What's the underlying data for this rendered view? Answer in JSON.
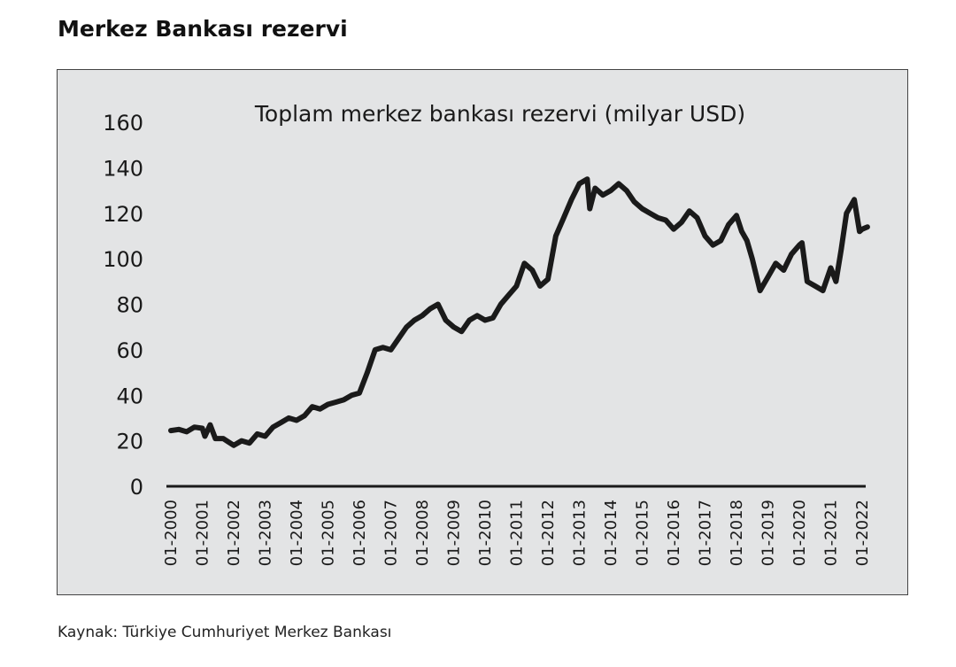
{
  "heading": "Merkez Bankası rezervi",
  "source": "Kaynak: Türkiye Cumhuriyet Merkez Bankası",
  "chart_data": {
    "type": "line",
    "title": "Toplam merkez bankası rezervi (milyar USD)",
    "xlabel": "",
    "ylabel": "",
    "ylim": [
      0,
      160
    ],
    "yticks": [
      0,
      20,
      40,
      60,
      80,
      100,
      120,
      140,
      160
    ],
    "xticks": [
      "01-2000",
      "01-2001",
      "01-2002",
      "01-2003",
      "01-2004",
      "01-2005",
      "01-2006",
      "01-2007",
      "01-2008",
      "01-2009",
      "01-2010",
      "01-2011",
      "01-2012",
      "01-2013",
      "01-2014",
      "01-2015",
      "01-2016",
      "01-2017",
      "01-2018",
      "01-2019",
      "01-2020",
      "01-2021",
      "01-2022"
    ],
    "grid": false,
    "line_color": "#1a1a1a",
    "series": [
      {
        "x": [
          "2000-01",
          "2000-04",
          "2000-07",
          "2000-10",
          "2001-01",
          "2001-02",
          "2001-04",
          "2001-06",
          "2001-09",
          "2002-01",
          "2002-04",
          "2002-07",
          "2002-10",
          "2003-01",
          "2003-04",
          "2003-07",
          "2003-10",
          "2004-01",
          "2004-04",
          "2004-07",
          "2004-10",
          "2005-01",
          "2005-04",
          "2005-07",
          "2005-10",
          "2006-01",
          "2006-04",
          "2006-07",
          "2006-10",
          "2007-01",
          "2007-04",
          "2007-07",
          "2007-10",
          "2008-01",
          "2008-04",
          "2008-07",
          "2008-10",
          "2009-01",
          "2009-04",
          "2009-07",
          "2009-10",
          "2010-01",
          "2010-04",
          "2010-07",
          "2010-10",
          "2011-01",
          "2011-04",
          "2011-07",
          "2011-10",
          "2012-01",
          "2012-04",
          "2012-07",
          "2012-10",
          "2013-01",
          "2013-04",
          "2013-05",
          "2013-07",
          "2013-10",
          "2014-01",
          "2014-04",
          "2014-07",
          "2014-10",
          "2015-01",
          "2015-04",
          "2015-07",
          "2015-10",
          "2016-01",
          "2016-04",
          "2016-07",
          "2016-10",
          "2017-01",
          "2017-04",
          "2017-07",
          "2017-10",
          "2018-01",
          "2018-03",
          "2018-05",
          "2018-07",
          "2018-10",
          "2019-01",
          "2019-04",
          "2019-07",
          "2019-10",
          "2020-01",
          "2020-02",
          "2020-04",
          "2020-07",
          "2020-10",
          "2021-01",
          "2021-03",
          "2021-05",
          "2021-07",
          "2021-10",
          "2021-12",
          "2022-01",
          "2022-03"
        ],
        "values": [
          24.5,
          25,
          24,
          26,
          25.5,
          22,
          27,
          21,
          21,
          18,
          20,
          19,
          23,
          22,
          26,
          28,
          30,
          29,
          31,
          35,
          34,
          36,
          37,
          38,
          40,
          41,
          50,
          60,
          61,
          60,
          65,
          70,
          73,
          75,
          78,
          80,
          73,
          70,
          68,
          73,
          75,
          73,
          74,
          80,
          84,
          88,
          98,
          95,
          88,
          91,
          110,
          118,
          126,
          133,
          135,
          122,
          131,
          128,
          130,
          133,
          130,
          125,
          122,
          120,
          118,
          117,
          113,
          116,
          121,
          118,
          110,
          106,
          108,
          115,
          119,
          112,
          108,
          100,
          86,
          92,
          98,
          95,
          102,
          106,
          107,
          90,
          88,
          86,
          96,
          90,
          104,
          120,
          126,
          112,
          113,
          114
        ]
      }
    ]
  }
}
